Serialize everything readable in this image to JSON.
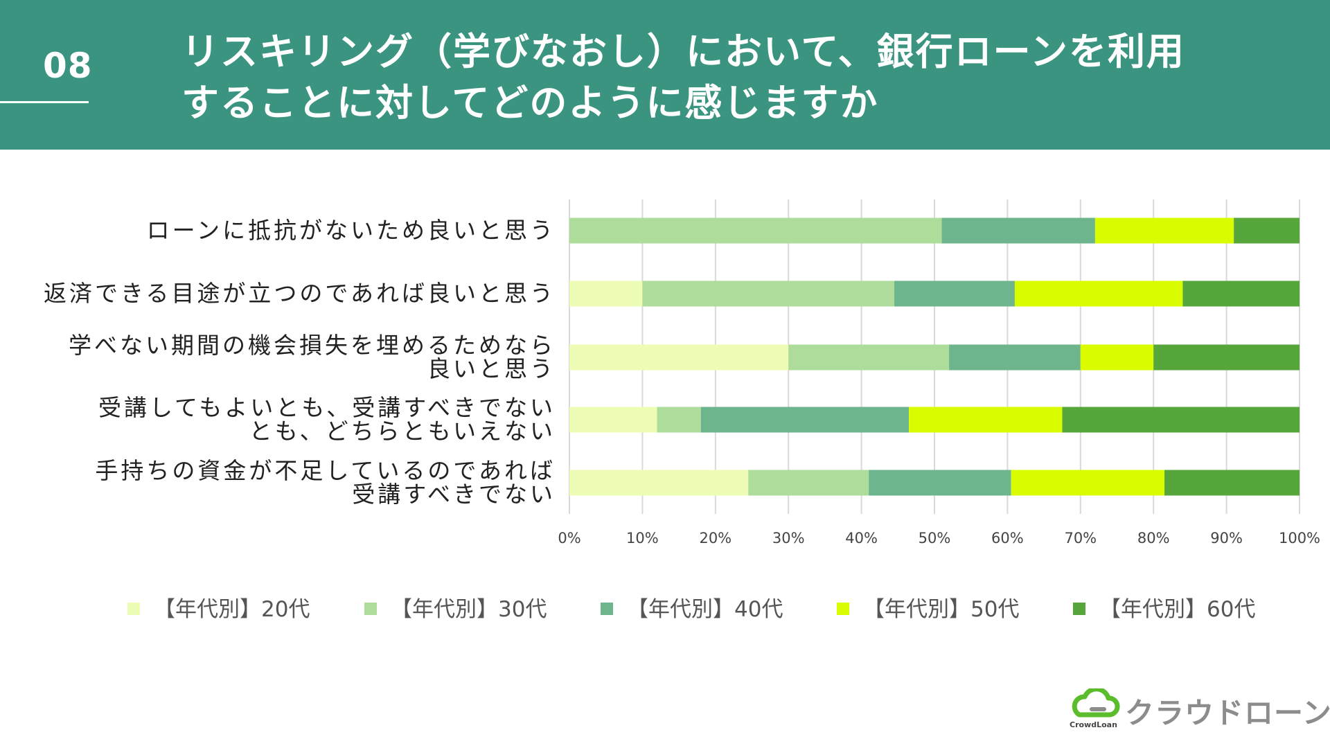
{
  "header": {
    "number": "08",
    "title_line1": "リスキリング（学びなおし）において、銀行ローンを利用",
    "title_line2": "することに対してどのように感じますか"
  },
  "colors": {
    "header_bg": "#3a9480",
    "series": [
      "#eefdb5",
      "#addc9b",
      "#6db58c",
      "#d9fd00",
      "#57a63b"
    ],
    "grid": "#d9d9d9",
    "logo_green": "#5bbd2b",
    "logo_gray": "#8c8c8c"
  },
  "chart_data": {
    "type": "bar",
    "orientation": "horizontal",
    "stacked": true,
    "percent_stacked": true,
    "categories": [
      [
        "ローンに抵抗がないため良いと思う"
      ],
      [
        "返済できる目途が立つのであれば良いと思う"
      ],
      [
        "学べない期間の機会損失を埋めるためなら",
        "良いと思う"
      ],
      [
        "受講してもよいとも、受講すべきでない",
        "とも、どちらともいえない"
      ],
      [
        "手持ちの資金が不足しているのであれば",
        "受講すべきでない"
      ]
    ],
    "series": [
      {
        "name": "【年代別】20代",
        "values": [
          0,
          10,
          30,
          12,
          24.5
        ]
      },
      {
        "name": "【年代別】30代",
        "values": [
          51,
          34.5,
          22,
          6,
          16.5
        ]
      },
      {
        "name": "【年代別】40代",
        "values": [
          21,
          16.5,
          18,
          28.5,
          19.5
        ]
      },
      {
        "name": "【年代別】50代",
        "values": [
          19,
          23,
          10,
          21,
          21
        ]
      },
      {
        "name": "【年代別】60代",
        "values": [
          9,
          16,
          20,
          32.5,
          18.5
        ]
      }
    ],
    "x_ticks": [
      "0%",
      "10%",
      "20%",
      "30%",
      "40%",
      "50%",
      "60%",
      "70%",
      "80%",
      "90%",
      "100%"
    ],
    "xlim": [
      0,
      100
    ],
    "grid": true,
    "legend_position": "bottom",
    "title": "",
    "xlabel": "",
    "ylabel": ""
  },
  "logo": {
    "text": "クラウドローン",
    "subtext": "CrowdLoan"
  }
}
